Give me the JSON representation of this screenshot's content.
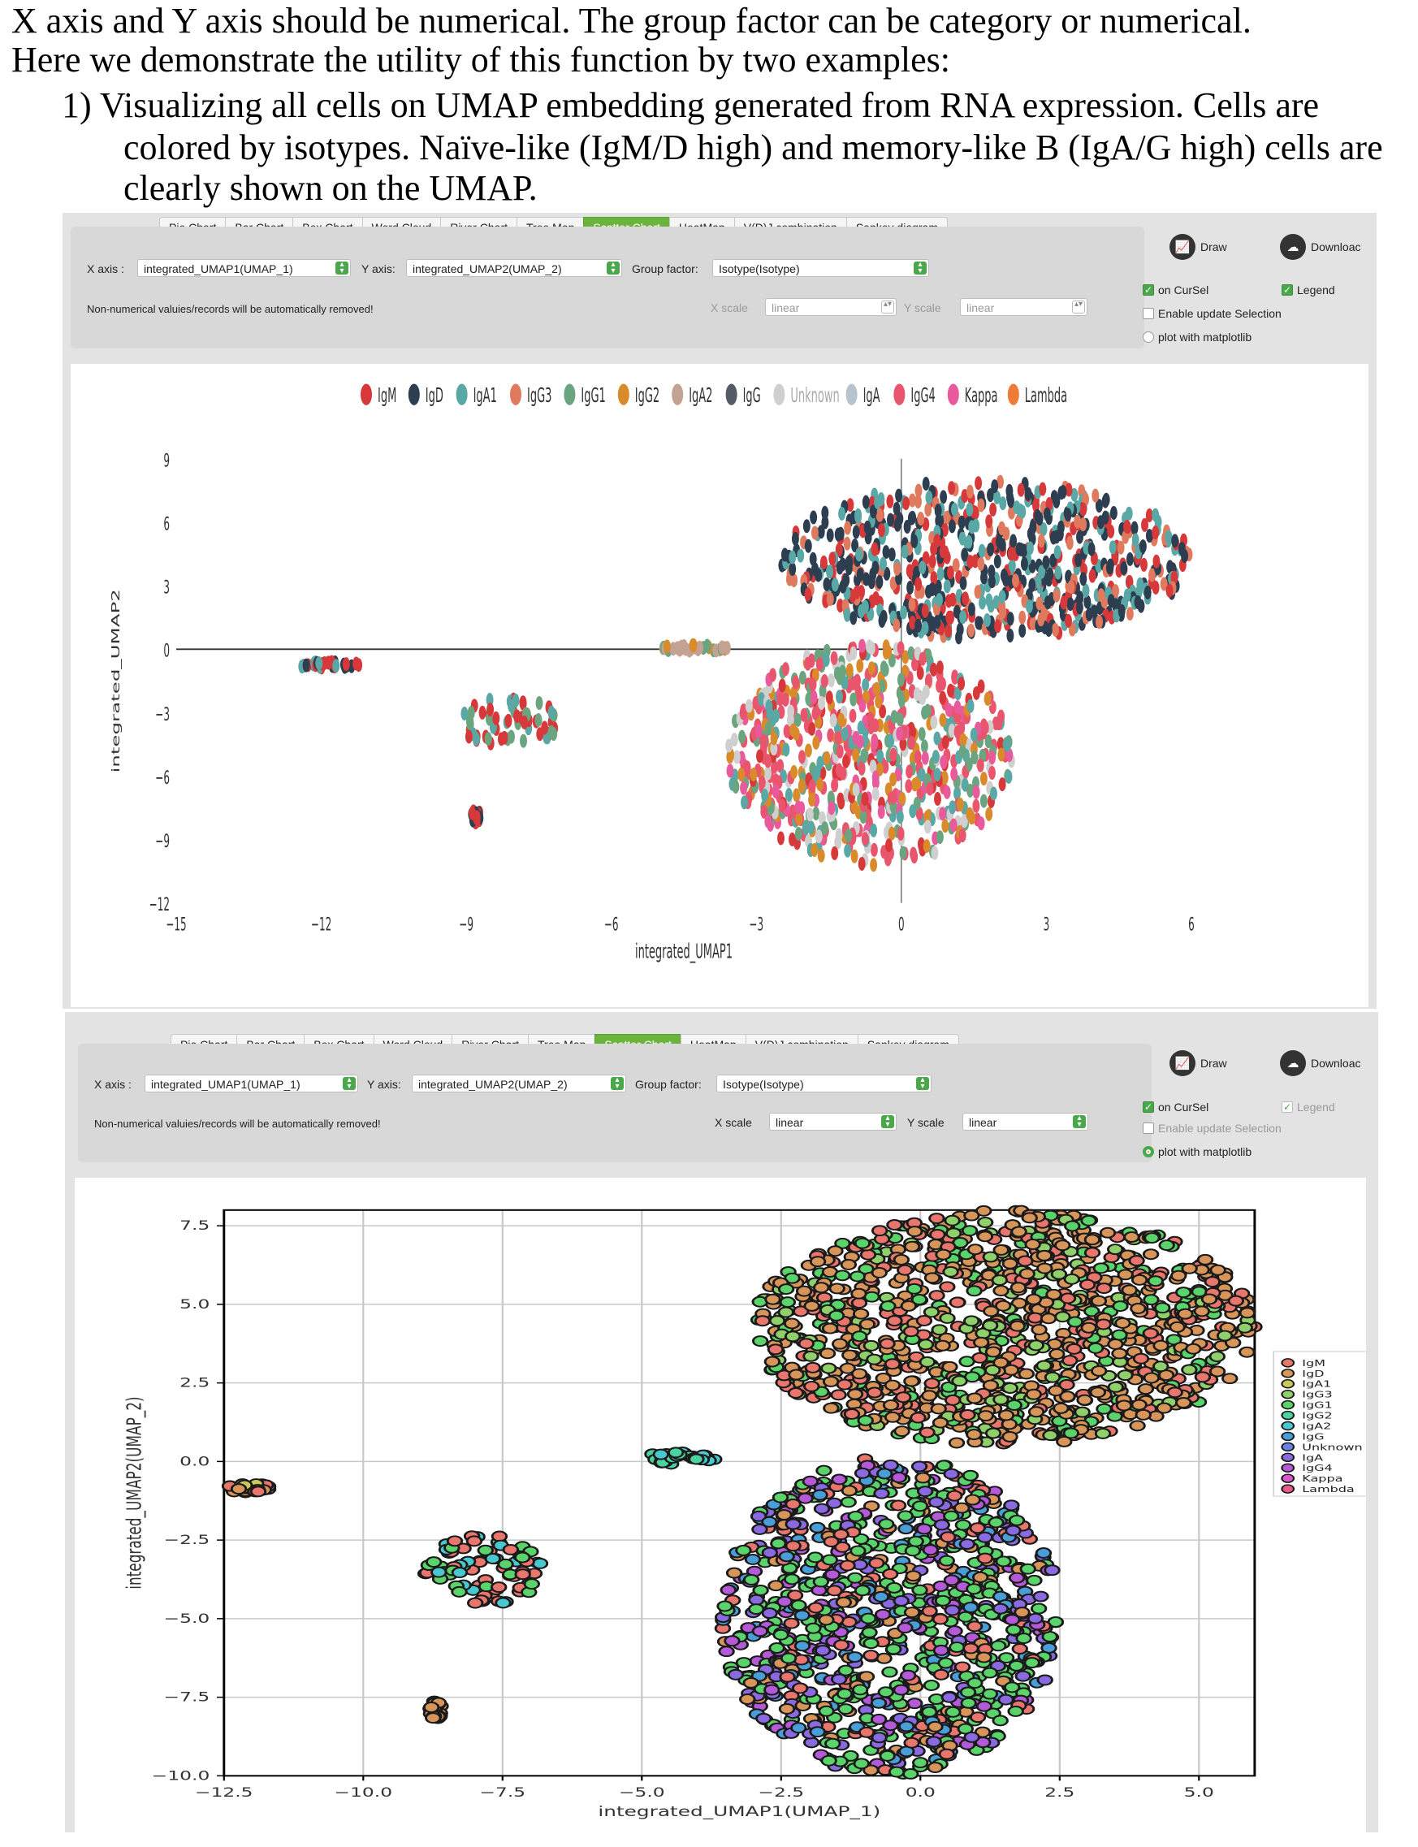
{
  "doc": {
    "line1": "X axis and Y axis should be numerical. The group factor can be category or numerical.",
    "line2": "Here we demonstrate the utility of this function by two examples:",
    "line3": "1)  Visualizing all cells on UMAP embedding generated from RNA expression. Cells are",
    "line4": "colored by isotypes. Naïve-like (IgM/D high) and memory-like B (IgA/G high) cells are",
    "line5": "clearly shown on the UMAP."
  },
  "tabs": [
    "Pie Chart",
    "Bar Chart",
    "Box Chart",
    "Word Cloud",
    "River Chart",
    "Tree Map",
    "Scatter Chart",
    "HeatMap",
    "V(D)J combination",
    "Sankey diagram"
  ],
  "active_tab": "Scatter Chart",
  "controls": {
    "x_axis_label": "X axis :",
    "x_axis_value": "integrated_UMAP1(UMAP_1)",
    "y_axis_label": "Y axis:",
    "y_axis_value": "integrated_UMAP2(UMAP_2)",
    "group_label": "Group factor:",
    "group_value": "Isotype(Isotype)",
    "warning": "Non-numerical valuies/records will be automatically removed!",
    "x_scale_label": "X scale",
    "x_scale_value": "linear",
    "y_scale_label": "Y scale",
    "y_scale_value": "linear",
    "draw_label": "Draw",
    "download_label": "Downloac",
    "on_cursel_label": "on CurSel",
    "legend_label": "Legend",
    "enable_update_label": "Enable update Selection",
    "matplotlib_label": "plot with matplotlib"
  },
  "panel1_state": {
    "on_cursel": true,
    "legend": true,
    "enable_update": false,
    "matplotlib": false,
    "scales_enabled": false
  },
  "panel2_state": {
    "on_cursel": true,
    "legend": true,
    "enable_update": false,
    "matplotlib": true,
    "scales_enabled": true
  },
  "colors": {
    "accent_green": "#6cb33e"
  },
  "chart_data": [
    {
      "type": "scatter",
      "title": "",
      "xlabel": "integrated_UMAP1",
      "ylabel": "integrated_UMAP2",
      "xlim": [
        -15,
        6
      ],
      "ylim": [
        -12,
        9
      ],
      "xticks": [
        -15,
        -12,
        -9,
        -6,
        -3,
        0,
        3,
        6
      ],
      "yticks": [
        9,
        6,
        3,
        0,
        -3,
        -6,
        -9,
        -12
      ],
      "grid": false,
      "legend_position": "top",
      "series": [
        {
          "name": "IgM",
          "color": "#d7393b"
        },
        {
          "name": "IgD",
          "color": "#2c3e50"
        },
        {
          "name": "IgA1",
          "color": "#5aa8a6"
        },
        {
          "name": "IgG3",
          "color": "#e07a5f"
        },
        {
          "name": "IgG1",
          "color": "#6aa57f"
        },
        {
          "name": "IgG2",
          "color": "#d98b2b"
        },
        {
          "name": "IgA2",
          "color": "#c4a293"
        },
        {
          "name": "IgG",
          "color": "#555b66"
        },
        {
          "name": "Unknown",
          "color": "#cfcfcf"
        },
        {
          "name": "IgA",
          "color": "#b7c4d0"
        },
        {
          "name": "IgG4",
          "color": "#e8556d"
        },
        {
          "name": "Kappa",
          "color": "#e85a9b"
        },
        {
          "name": "Lambda",
          "color": "#ef7b39"
        }
      ],
      "clusters": [
        {
          "x": [
            -12.5,
            -11.2
          ],
          "y": [
            -0.9,
            -0.6
          ],
          "groups": [
            "IgM",
            "IgD",
            "IgA1"
          ]
        },
        {
          "x": [
            -9.2,
            -7.0
          ],
          "y": [
            -4.6,
            -2.3
          ],
          "groups": [
            "IgM",
            "IgG1",
            "IgA1"
          ]
        },
        {
          "x": [
            -8.9,
            -8.7
          ],
          "y": [
            -8.2,
            -7.6
          ],
          "groups": [
            "IgD",
            "IgM"
          ]
        },
        {
          "x": [
            -5.0,
            -3.6
          ],
          "y": [
            -0.1,
            0.2
          ],
          "groups": [
            "IgA2",
            "IgG1",
            "IgG2"
          ]
        },
        {
          "x": [
            -2.5,
            6.0
          ],
          "y": [
            0.5,
            8.0
          ],
          "groups": [
            "IgD",
            "IgM",
            "IgA1",
            "IgG3"
          ]
        },
        {
          "x": [
            -3.6,
            2.3
          ],
          "y": [
            -10.2,
            0.2
          ],
          "groups": [
            "IgG4",
            "IgG1",
            "IgG2",
            "Unknown",
            "IgA1",
            "Kappa",
            "IgM"
          ]
        }
      ]
    },
    {
      "type": "scatter",
      "title": "",
      "xlabel": "integrated_UMAP1(UMAP_1)",
      "ylabel": "integrated_UMAP2(UMAP_2)",
      "xlim": [
        -12.5,
        6.0
      ],
      "ylim": [
        -10.0,
        8.0
      ],
      "xticks": [
        -12.5,
        -10.0,
        -7.5,
        -5.0,
        -2.5,
        0.0,
        2.5,
        5.0
      ],
      "yticks": [
        7.5,
        5.0,
        2.5,
        0.0,
        -2.5,
        -5.0,
        -7.5,
        -10.0
      ],
      "grid": true,
      "legend_position": "right",
      "series": [
        {
          "name": "IgM",
          "color": "#e8766d"
        },
        {
          "name": "IgD",
          "color": "#d8955a"
        },
        {
          "name": "IgA1",
          "color": "#c9c95a"
        },
        {
          "name": "IgG3",
          "color": "#8fd06a"
        },
        {
          "name": "IgG1",
          "color": "#5ad36a"
        },
        {
          "name": "IgG2",
          "color": "#4ad3a0"
        },
        {
          "name": "IgA2",
          "color": "#4ac8cf"
        },
        {
          "name": "IgG",
          "color": "#4a9ed8"
        },
        {
          "name": "Unknown",
          "color": "#6a7ee8"
        },
        {
          "name": "IgA",
          "color": "#8a6ae0"
        },
        {
          "name": "IgG4",
          "color": "#b45ad8"
        },
        {
          "name": "Kappa",
          "color": "#d85ac8"
        },
        {
          "name": "Lambda",
          "color": "#e85a8a"
        }
      ],
      "clusters": [
        {
          "x": [
            -12.5,
            -11.5
          ],
          "y": [
            -1.0,
            -0.7
          ],
          "groups": [
            "IgD",
            "IgM",
            "IgA1"
          ]
        },
        {
          "x": [
            -8.9,
            -6.8
          ],
          "y": [
            -4.6,
            -2.3
          ],
          "groups": [
            "IgM",
            "IgG1",
            "IgA2"
          ]
        },
        {
          "x": [
            -8.8,
            -8.6
          ],
          "y": [
            -8.2,
            -7.6
          ],
          "groups": [
            "IgD"
          ]
        },
        {
          "x": [
            -5.0,
            -3.6
          ],
          "y": [
            -0.1,
            0.3
          ],
          "groups": [
            "IgG2",
            "IgA2",
            "IgD"
          ]
        },
        {
          "x": [
            -3.0,
            6.0
          ],
          "y": [
            0.5,
            8.0
          ],
          "groups": [
            "IgD",
            "IgM",
            "IgG1",
            "IgG3"
          ]
        },
        {
          "x": [
            -3.6,
            2.5
          ],
          "y": [
            -10.0,
            0.2
          ],
          "groups": [
            "IgG1",
            "IgA",
            "IgG4",
            "IgG",
            "IgD",
            "IgM"
          ]
        }
      ]
    }
  ]
}
